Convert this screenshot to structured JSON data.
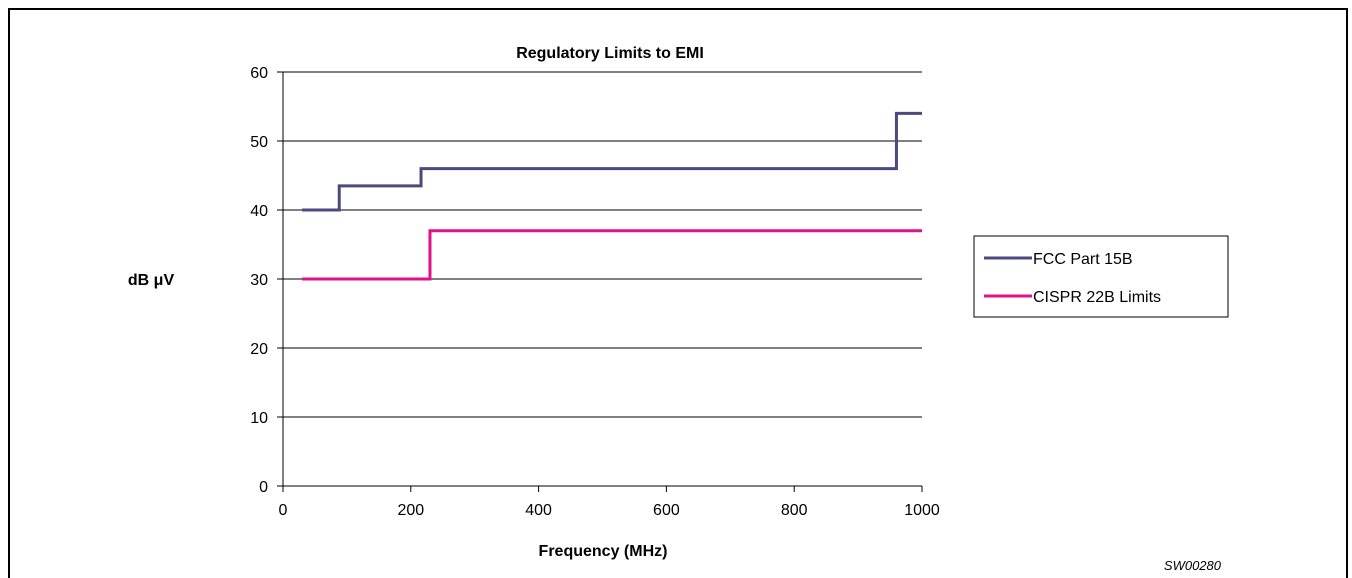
{
  "colors": {
    "fcc": "#4A4A7E",
    "cispr": "#E0128A",
    "grid": "#000000"
  },
  "chart_data": {
    "type": "line",
    "title": "Regulatory Limits to EMI",
    "xlabel": "Frequency (MHz)",
    "ylabel_prefix": "dB ",
    "ylabel_unit": "μV",
    "xlim": [
      0,
      1000
    ],
    "ylim": [
      0,
      60
    ],
    "x_ticks": [
      0,
      200,
      400,
      600,
      800,
      1000
    ],
    "y_ticks": [
      0,
      10,
      20,
      30,
      40,
      50,
      60
    ],
    "grid": "horizontal",
    "legend_position": "right",
    "series": [
      {
        "name": "FCC Part 15B",
        "color_key": "fcc",
        "step": true,
        "x": [
          30,
          88,
          216,
          960,
          1000
        ],
        "y": [
          40,
          43.5,
          46,
          54,
          54
        ]
      },
      {
        "name": "CISPR 22B Limits",
        "color_key": "cispr",
        "step": true,
        "x": [
          30,
          230,
          1000
        ],
        "y": [
          30,
          37,
          37
        ]
      }
    ],
    "annotation": "SW00280"
  }
}
